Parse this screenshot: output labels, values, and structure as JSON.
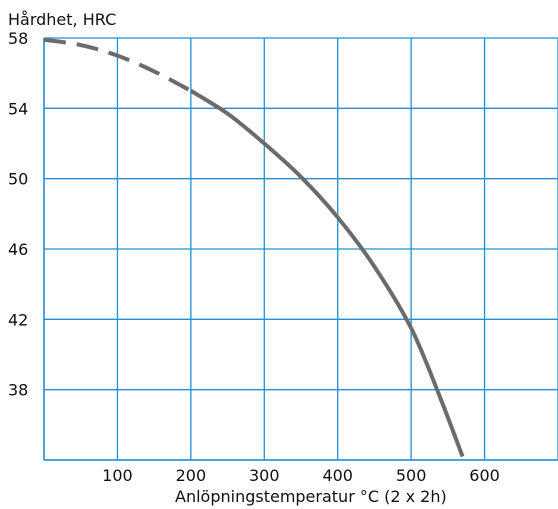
{
  "chart_data": {
    "type": "line",
    "title": "",
    "ylabel": "Hårdhet, HRC",
    "xlabel": "Anlöpningstemperatur °C (2 x 2h)",
    "xlim": [
      0,
      700
    ],
    "ylim": [
      34,
      58
    ],
    "x_ticks": [
      100,
      200,
      300,
      400,
      500,
      600
    ],
    "y_ticks": [
      58,
      54,
      50,
      46,
      42,
      38
    ],
    "grid": true,
    "grid_x": [
      100,
      200,
      300,
      400,
      500,
      600,
      700
    ],
    "grid_y": [
      34,
      38,
      42,
      46,
      50,
      54,
      58
    ],
    "colors": {
      "grid": "#1f8fd6",
      "curve": "#6b6b6b"
    },
    "series": [
      {
        "style": "dashed",
        "x": [
          0,
          50,
          100,
          150,
          200
        ],
        "y": [
          57.9,
          57.6,
          57.0,
          56.1,
          55.0
        ]
      },
      {
        "style": "solid",
        "x": [
          200,
          250,
          300,
          350,
          400,
          450,
          500,
          540,
          570
        ],
        "y": [
          55.0,
          53.7,
          52.0,
          50.1,
          47.8,
          45.0,
          41.5,
          37.5,
          34.2
        ]
      }
    ]
  }
}
